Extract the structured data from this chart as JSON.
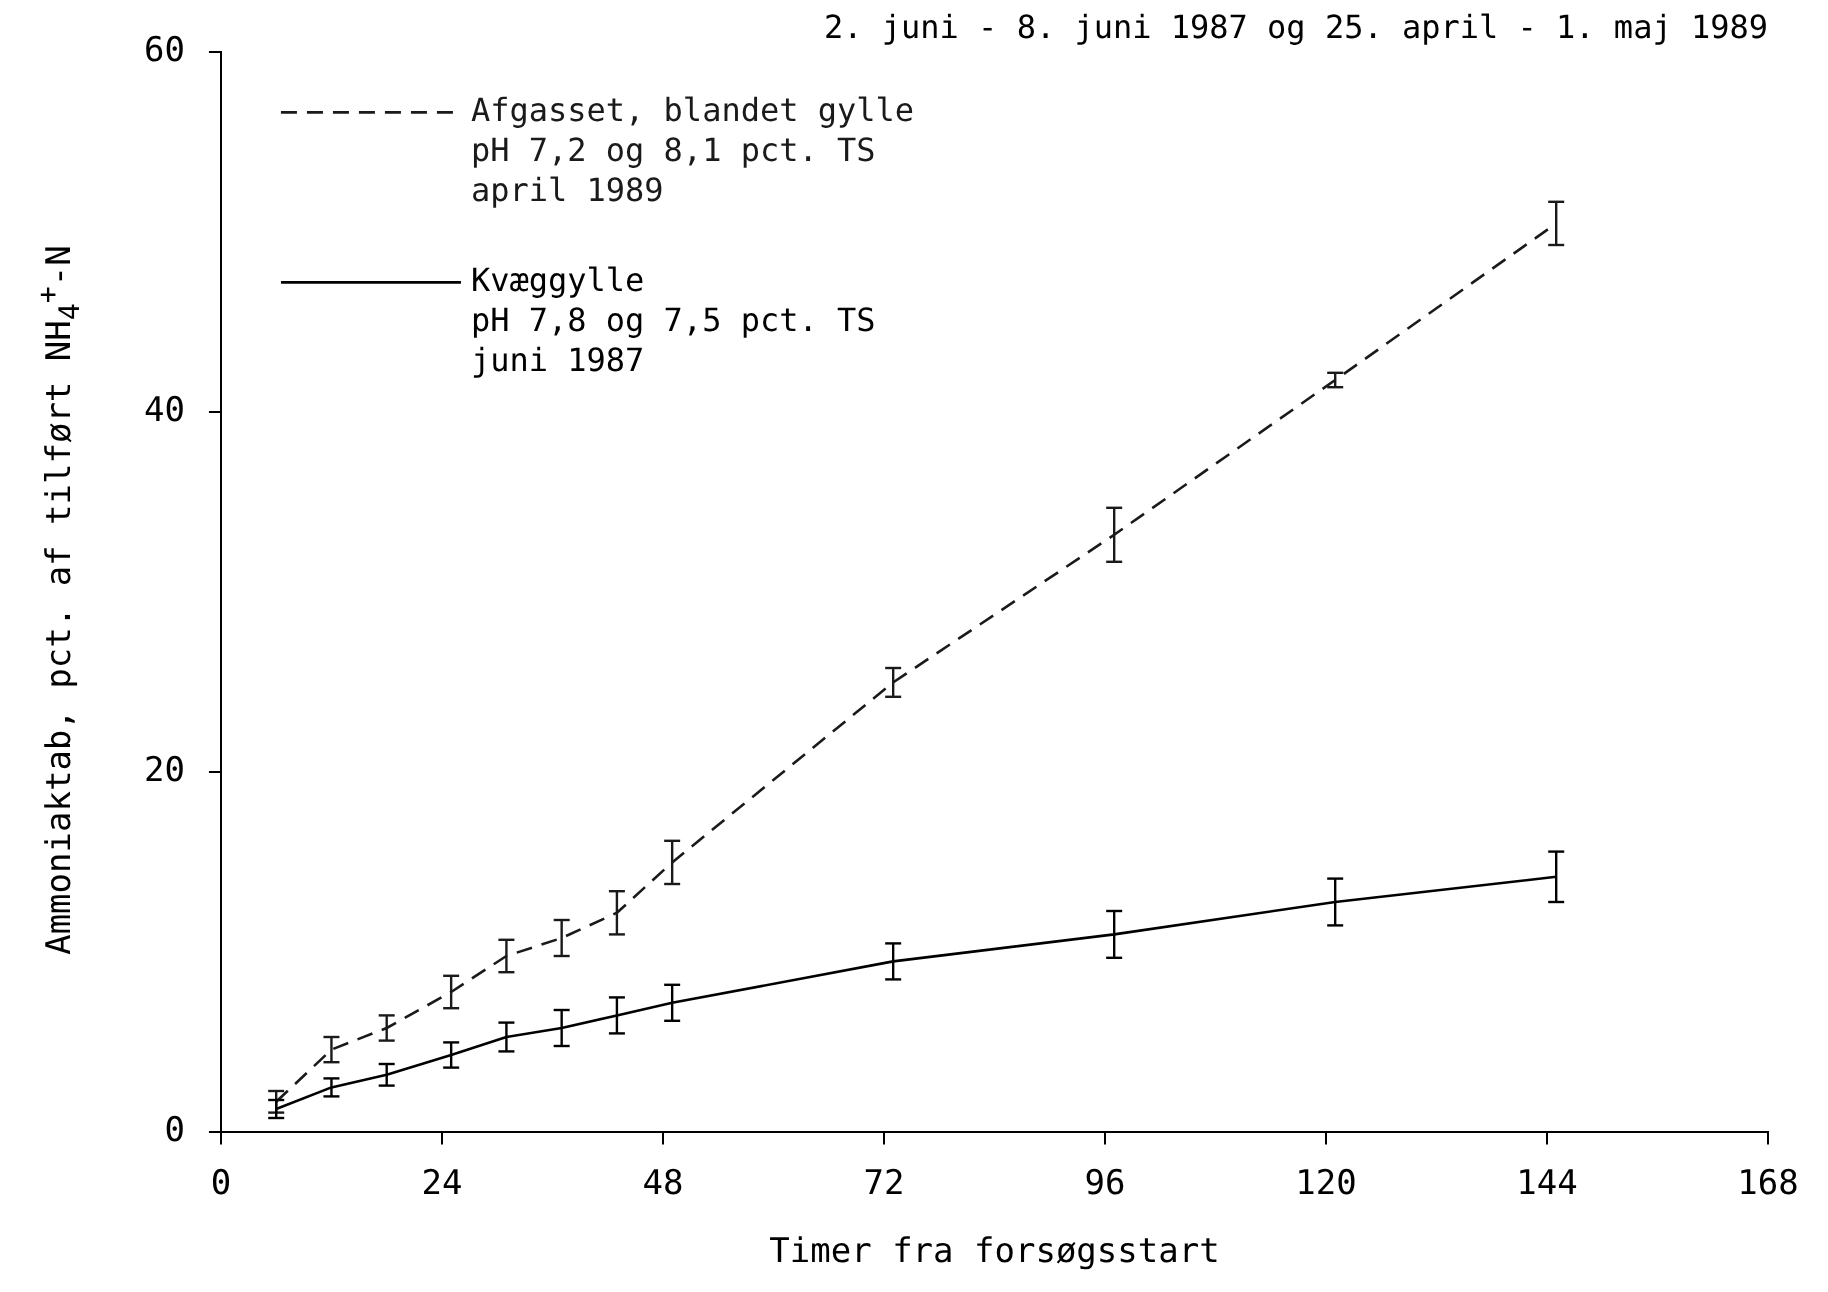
{
  "chart_data": {
    "type": "line",
    "title": "2. juni - 8. juni 1987 og 25. april - 1. maj 1989",
    "xlabel": "Timer fra forsøgsstart",
    "ylabel": "Ammoniaktab, pct. af tilført NH$_{4}$$^{+}$-N",
    "x": [
      6,
      12,
      18,
      25,
      31,
      37,
      43,
      49,
      73,
      97,
      121,
      145
    ],
    "series": [
      {
        "name": "Afgasset, blandet gylle\npH 7,2 og 8,1 pct. TS\napril 1989",
        "color": "#1a1a1a",
        "line_style": "dashed",
        "values": [
          1.7,
          4.6,
          5.8,
          7.8,
          9.8,
          10.8,
          12.2,
          15,
          25,
          33.2,
          41.8,
          50.5
        ],
        "errors": [
          0.6,
          0.7,
          0.7,
          0.9,
          0.9,
          1,
          1.2,
          1.2,
          0.8,
          1.5,
          0.4,
          1.2
        ]
      },
      {
        "name": "Kvæggylle\npH 7,8 og 7,5 pct. TS\njuni 1987",
        "color": "#000000",
        "line_style": "solid",
        "values": [
          1.3,
          2.5,
          3.2,
          4.3,
          5.3,
          5.8,
          6.5,
          7.2,
          9.5,
          11,
          12.8,
          14.2
        ],
        "errors": [
          0.5,
          0.5,
          0.6,
          0.7,
          0.8,
          1,
          1,
          1,
          1,
          1.3,
          1.3,
          1.4
        ]
      }
    ],
    "xlim": [
      0,
      168
    ],
    "xticks": [
      0,
      24,
      48,
      72,
      96,
      120,
      144,
      168
    ],
    "ylim": [
      0,
      60
    ],
    "yticks": [
      0,
      20,
      40,
      60
    ],
    "grid": false,
    "legend": "top left",
    "marker": "none"
  }
}
